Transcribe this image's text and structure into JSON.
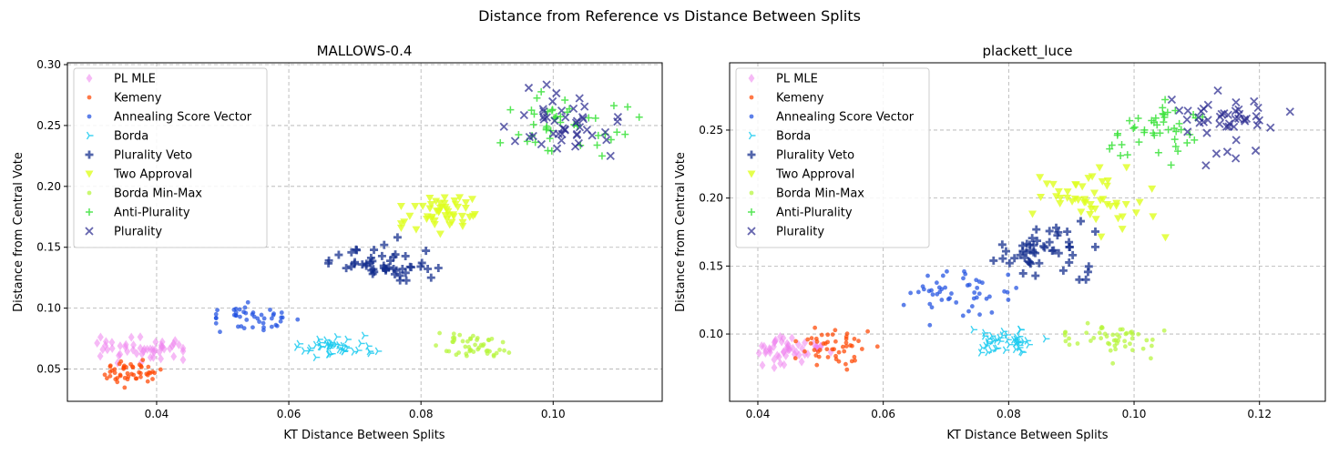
{
  "figure": {
    "title": "Distance from Reference vs Distance Between Splits"
  },
  "legend": [
    {
      "name": "PL MLE",
      "color": "#ee82ee",
      "marker": "diamond"
    },
    {
      "name": "Kemeny",
      "color": "#ff4500",
      "marker": "dot"
    },
    {
      "name": "Annealing Score Vector",
      "color": "#1f4fe0",
      "marker": "dot"
    },
    {
      "name": "Borda",
      "color": "#1ecbf0",
      "marker": "tri-right"
    },
    {
      "name": "Plurality Veto",
      "color": "#0f2a8a",
      "marker": "plus-bold"
    },
    {
      "name": "Two Approval",
      "color": "#dfff1f",
      "marker": "tri-down"
    },
    {
      "name": "Borda Min-Max",
      "color": "#b5f53a",
      "marker": "dot"
    },
    {
      "name": "Anti-Plurality",
      "color": "#3ae23a",
      "marker": "plus"
    },
    {
      "name": "Plurality",
      "color": "#2a2a8f",
      "marker": "x"
    }
  ],
  "chart_data": [
    {
      "type": "scatter",
      "title": "MALLOWS-0.4",
      "xlabel": "KT Distance Between Splits",
      "ylabel": "Distance from Central Vote",
      "xlim": [
        0.0265,
        0.1165
      ],
      "ylim": [
        0.0235,
        0.3015
      ],
      "xticks": [
        0.04,
        0.06,
        0.08,
        0.1
      ],
      "xtick_labels": [
        "0.04",
        "0.06",
        "0.08",
        "0.10"
      ],
      "yticks": [
        0.05,
        0.1,
        0.15,
        0.2,
        0.25,
        0.3
      ],
      "ytick_labels": [
        "0.05",
        "0.10",
        "0.15",
        "0.20",
        "0.25",
        "0.30"
      ],
      "grid": true,
      "legend_position": "upper-left",
      "series": [
        {
          "name": "PL MLE",
          "clusters": [
            {
              "cx": 0.0375,
              "cy": 0.066,
              "sx": 0.0035,
              "sy": 0.0055,
              "n": 50,
              "xmin": 0.031,
              "xmax": 0.044,
              "ymin": 0.055,
              "ymax": 0.088
            }
          ]
        },
        {
          "name": "Kemeny",
          "clusters": [
            {
              "cx": 0.036,
              "cy": 0.048,
              "sx": 0.0022,
              "sy": 0.005,
              "n": 50,
              "xmin": 0.032,
              "xmax": 0.041,
              "ymin": 0.034,
              "ymax": 0.062
            }
          ]
        },
        {
          "name": "Annealing Score Vector",
          "clusters": [
            {
              "cx": 0.0545,
              "cy": 0.092,
              "sx": 0.0035,
              "sy": 0.0065,
              "n": 45,
              "xmin": 0.049,
              "xmax": 0.062,
              "ymin": 0.074,
              "ymax": 0.11
            }
          ]
        },
        {
          "name": "Borda",
          "clusters": [
            {
              "cx": 0.0665,
              "cy": 0.069,
              "sx": 0.003,
              "sy": 0.0045,
              "n": 42,
              "xmin": 0.061,
              "xmax": 0.075,
              "ymin": 0.057,
              "ymax": 0.082
            }
          ]
        },
        {
          "name": "Plurality Veto",
          "clusters": [
            {
              "cx": 0.0735,
              "cy": 0.137,
              "sx": 0.0045,
              "sy": 0.008,
              "n": 50,
              "xmin": 0.066,
              "xmax": 0.084,
              "ymin": 0.116,
              "ymax": 0.159
            }
          ]
        },
        {
          "name": "Two Approval",
          "clusters": [
            {
              "cx": 0.083,
              "cy": 0.178,
              "sx": 0.0035,
              "sy": 0.007,
              "n": 50,
              "xmin": 0.077,
              "xmax": 0.092,
              "ymin": 0.16,
              "ymax": 0.209
            }
          ]
        },
        {
          "name": "Borda Min-Max",
          "clusters": [
            {
              "cx": 0.088,
              "cy": 0.07,
              "sx": 0.003,
              "sy": 0.0045,
              "n": 48,
              "xmin": 0.08,
              "xmax": 0.098,
              "ymin": 0.058,
              "ymax": 0.082
            }
          ]
        },
        {
          "name": "Anti-Plurality",
          "clusters": [
            {
              "cx": 0.102,
              "cy": 0.25,
              "sx": 0.0045,
              "sy": 0.012,
              "n": 45,
              "xmin": 0.092,
              "xmax": 0.115,
              "ymin": 0.225,
              "ymax": 0.282
            }
          ]
        },
        {
          "name": "Plurality",
          "clusters": [
            {
              "cx": 0.103,
              "cy": 0.25,
              "sx": 0.0045,
              "sy": 0.012,
              "n": 45,
              "xmin": 0.092,
              "xmax": 0.115,
              "ymin": 0.225,
              "ymax": 0.288
            }
          ]
        }
      ]
    },
    {
      "type": "scatter",
      "title": "plackett_luce",
      "xlabel": "KT Distance Between Splits",
      "ylabel": "Distance from Central Vote",
      "xlim": [
        0.0355,
        0.1305
      ],
      "ylim": [
        0.0505,
        0.2995
      ],
      "xticks": [
        0.04,
        0.06,
        0.08,
        0.1,
        0.12
      ],
      "xtick_labels": [
        "0.04",
        "0.06",
        "0.08",
        "0.10",
        "0.12"
      ],
      "yticks": [
        0.1,
        0.15,
        0.2,
        0.25
      ],
      "ytick_labels": [
        "0.10",
        "0.15",
        "0.20",
        "0.25"
      ],
      "grid": true,
      "legend_position": "upper-left",
      "series": [
        {
          "name": "PL MLE",
          "clusters": [
            {
              "cx": 0.045,
              "cy": 0.087,
              "sx": 0.003,
              "sy": 0.006,
              "n": 50,
              "xmin": 0.04,
              "xmax": 0.052,
              "ymin": 0.065,
              "ymax": 0.1
            }
          ]
        },
        {
          "name": "Kemeny",
          "clusters": [
            {
              "cx": 0.052,
              "cy": 0.09,
              "sx": 0.0035,
              "sy": 0.0075,
              "n": 50,
              "xmin": 0.046,
              "xmax": 0.062,
              "ymin": 0.07,
              "ymax": 0.118
            }
          ]
        },
        {
          "name": "Annealing Score Vector",
          "clusters": [
            {
              "cx": 0.072,
              "cy": 0.13,
              "sx": 0.004,
              "sy": 0.008,
              "n": 50,
              "xmin": 0.062,
              "xmax": 0.082,
              "ymin": 0.105,
              "ymax": 0.146
            }
          ]
        },
        {
          "name": "Borda",
          "clusters": [
            {
              "cx": 0.079,
              "cy": 0.095,
              "sx": 0.003,
              "sy": 0.005,
              "n": 45,
              "xmin": 0.072,
              "xmax": 0.088,
              "ymin": 0.081,
              "ymax": 0.11
            }
          ]
        },
        {
          "name": "Plurality Veto",
          "clusters": [
            {
              "cx": 0.086,
              "cy": 0.162,
              "sx": 0.0045,
              "sy": 0.009,
              "n": 50,
              "xmin": 0.074,
              "xmax": 0.096,
              "ymin": 0.14,
              "ymax": 0.183
            }
          ]
        },
        {
          "name": "Two Approval",
          "clusters": [
            {
              "cx": 0.093,
              "cy": 0.198,
              "sx": 0.0045,
              "sy": 0.011,
              "n": 50,
              "xmin": 0.082,
              "xmax": 0.105,
              "ymin": 0.168,
              "ymax": 0.226
            }
          ]
        },
        {
          "name": "Borda Min-Max",
          "clusters": [
            {
              "cx": 0.0975,
              "cy": 0.097,
              "sx": 0.0035,
              "sy": 0.006,
              "n": 50,
              "xmin": 0.089,
              "xmax": 0.109,
              "ymin": 0.076,
              "ymax": 0.112
            }
          ]
        },
        {
          "name": "Anti-Plurality",
          "clusters": [
            {
              "cx": 0.104,
              "cy": 0.25,
              "sx": 0.004,
              "sy": 0.011,
              "n": 45,
              "xmin": 0.096,
              "xmax": 0.116,
              "ymin": 0.224,
              "ymax": 0.273
            }
          ]
        },
        {
          "name": "Plurality",
          "clusters": [
            {
              "cx": 0.113,
              "cy": 0.258,
              "sx": 0.0045,
              "sy": 0.012,
              "n": 45,
              "xmin": 0.103,
              "xmax": 0.126,
              "ymin": 0.224,
              "ymax": 0.286
            }
          ]
        }
      ]
    }
  ]
}
